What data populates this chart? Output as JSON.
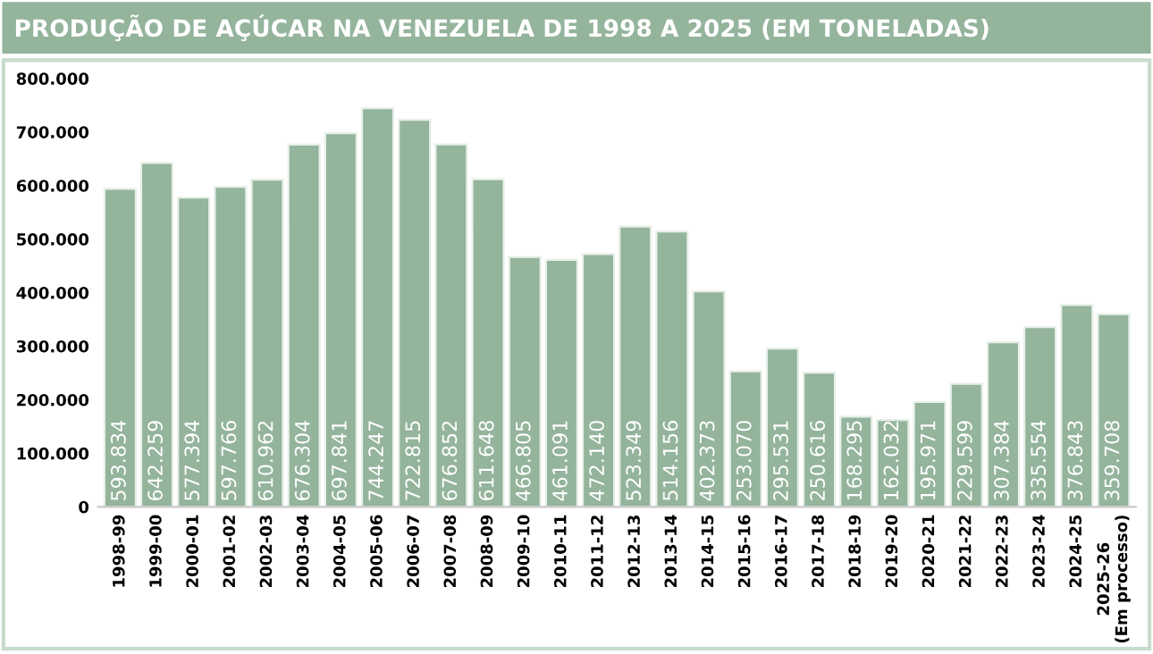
{
  "chart_data": {
    "type": "bar",
    "title": "PRODUÇÃO DE AÇÚCAR NA VENEZUELA DE 1998 A 2025 (EM TONELADAS)",
    "categories": [
      "1998-99",
      "1999-00",
      "2000-01",
      "2001-02",
      "2002-03",
      "2003-04",
      "2004-05",
      "2005-06",
      "2006-07",
      "2007-08",
      "2008-09",
      "2009-10",
      "2010-11",
      "2011-12",
      "2012-13",
      "2013-14",
      "2014-15",
      "2015-16",
      "2016-17",
      "2017-18",
      "2018-19",
      "2019-20",
      "2020-21",
      "2021-22",
      "2022-23",
      "2023-24",
      "2024-25",
      "2025-26\n(Em processo)"
    ],
    "values": [
      593834,
      642259,
      577394,
      597766,
      610962,
      676304,
      697841,
      744247,
      722815,
      676852,
      611648,
      466805,
      461091,
      472140,
      523349,
      514156,
      402373,
      253070,
      295531,
      250616,
      168295,
      162032,
      195971,
      229599,
      307384,
      335554,
      376843,
      359708
    ],
    "value_labels": [
      "593.834",
      "642.259",
      "577.394",
      "597.766",
      "610.962",
      "676.304",
      "697.841",
      "744.247",
      "722.815",
      "676.852",
      "611.648",
      "466.805",
      "461.091",
      "472.140",
      "523.349",
      "514.156",
      "402.373",
      "253.070",
      "295.531",
      "250.616",
      "168.295",
      "162.032",
      "195.971",
      "229.599",
      "307.384",
      "335.554",
      "376.843",
      "359.708"
    ],
    "color": "#94b49c",
    "ylim": [
      0,
      800000
    ],
    "yticks": [
      {
        "value": 0,
        "label": "0"
      },
      {
        "value": 100000,
        "label": "100.000"
      },
      {
        "value": 200000,
        "label": "200.000"
      },
      {
        "value": 300000,
        "label": "300.000"
      },
      {
        "value": 400000,
        "label": "400.000"
      },
      {
        "value": 500000,
        "label": "500.000"
      },
      {
        "value": 600000,
        "label": "600.000"
      },
      {
        "value": 700000,
        "label": "700.000"
      },
      {
        "value": 800000,
        "label": "800.000"
      }
    ],
    "grid": false,
    "legend": false
  }
}
